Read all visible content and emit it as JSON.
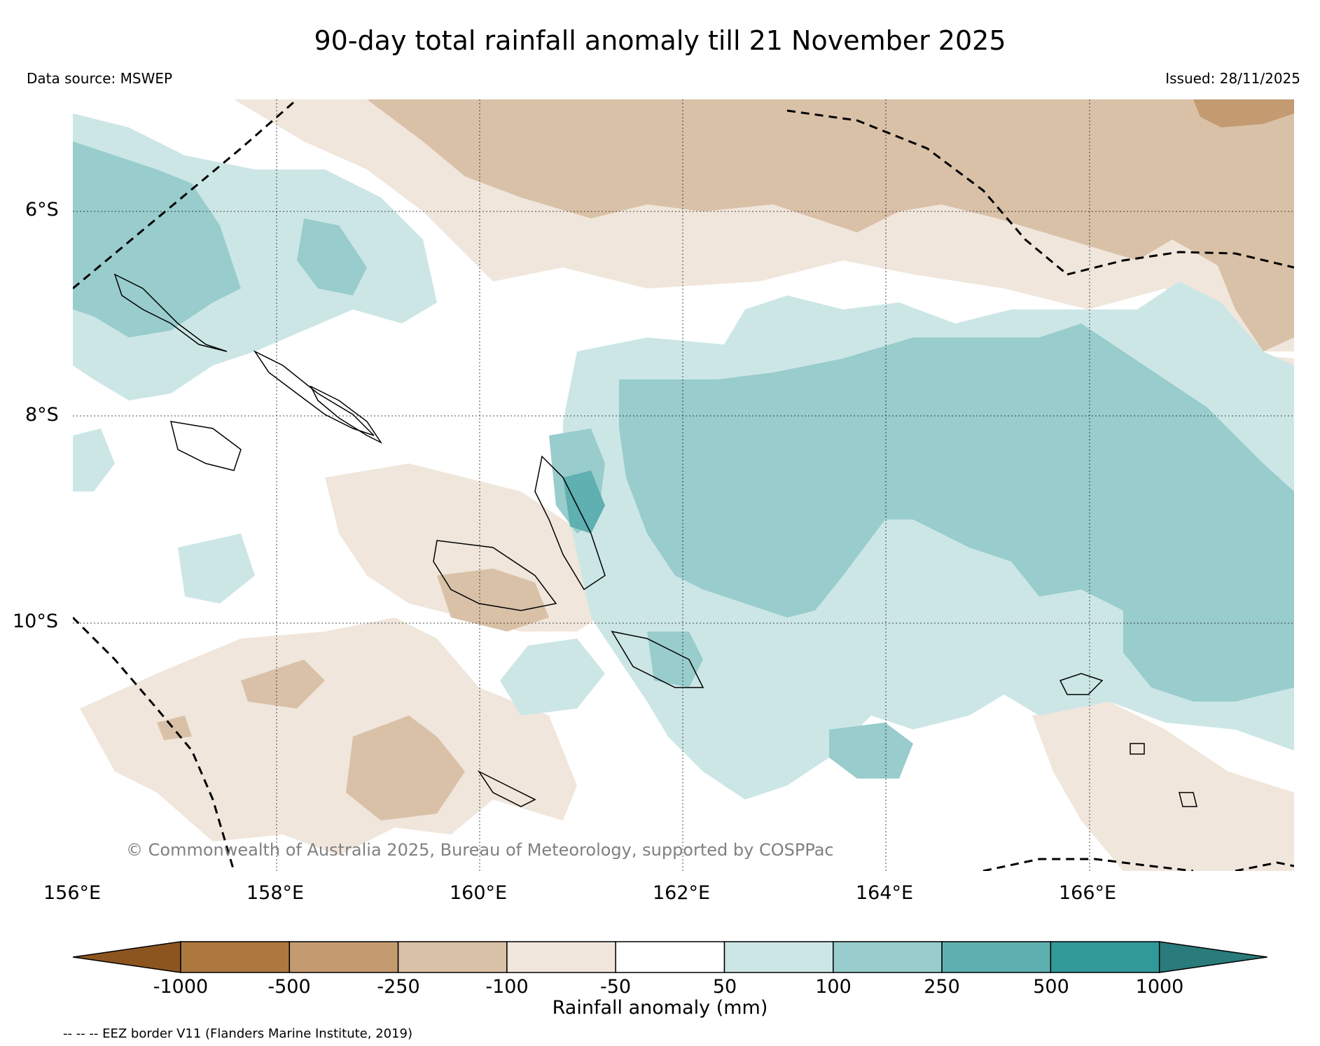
{
  "header": {
    "title": "90-day total rainfall anomaly till 21 November 2025",
    "data_source": "Data source: MSWEP",
    "issued": "Issued: 28/11/2025"
  },
  "map": {
    "latitude_labels": [
      "6°S",
      "8°S",
      "10°S"
    ],
    "longitude_labels": [
      "156°E",
      "158°E",
      "160°E",
      "162°E",
      "164°E",
      "166°E"
    ],
    "copyright": "© Commonwealth of Australia 2025, Bureau of Meteorology, supported by COSPPac"
  },
  "colorbar": {
    "label": "Rainfall anomaly (mm)",
    "ticks": [
      "-1000",
      "-500",
      "-250",
      "-100",
      "-50",
      "50",
      "100",
      "250",
      "500",
      "1000"
    ],
    "colors": [
      "#8c5520",
      "#ad7840",
      "#c49a70",
      "#d9c1a8",
      "#f0e6dc",
      "#ffffff",
      "#cce6e6",
      "#99cccc",
      "#5fb0b0",
      "#329999",
      "#2a7b7b"
    ]
  },
  "footer": {
    "eez_note": "-- -- -- EEZ border V11 (Flanders Marine Institute, 2019)"
  },
  "icons": {
    "map": "rainfall-anomaly-map",
    "colorbar": "colorbar-scale"
  }
}
